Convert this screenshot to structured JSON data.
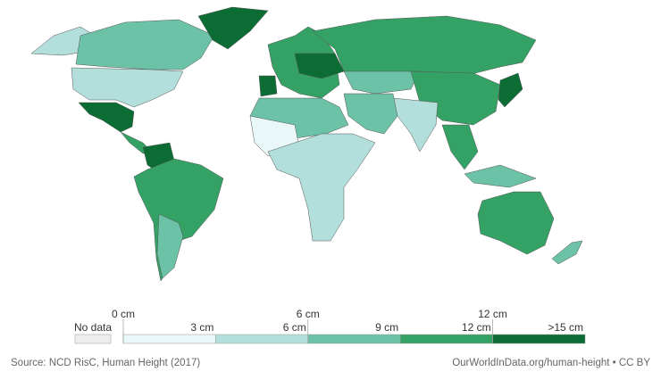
{
  "legend": {
    "no_data": "No data",
    "no_data_color": "#eeeeee",
    "bins": [
      {
        "from": "0 cm",
        "to": "3 cm",
        "color": "#eaf7f8"
      },
      {
        "from": "3 cm",
        "to": "6 cm",
        "color": "#b2dfdc"
      },
      {
        "from": "6 cm",
        "to": "9 cm",
        "color": "#6cc2a6"
      },
      {
        "from": "9 cm",
        "to": "12 cm",
        "color": "#35a265"
      },
      {
        "from": "12 cm",
        "to": ">15 cm",
        "color": "#0b6c34"
      }
    ]
  },
  "footer": {
    "source": "Source: NCD RisC, Human Height (2017)",
    "credit": "OurWorldInData.org/human-height • CC BY"
  }
}
